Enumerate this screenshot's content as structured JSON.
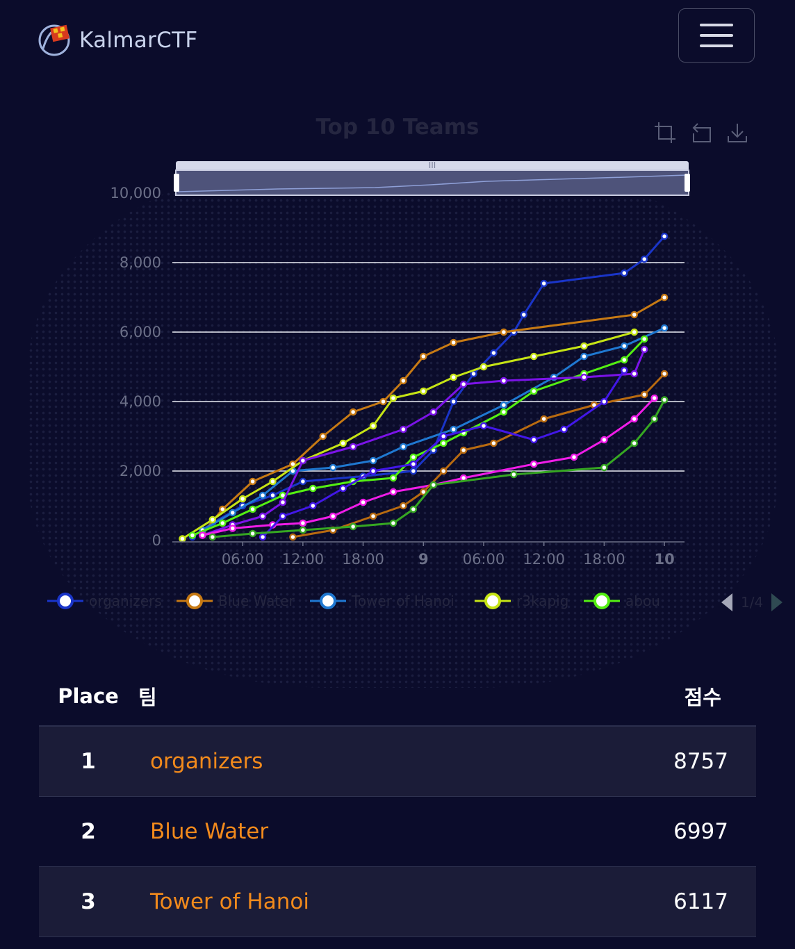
{
  "brand": {
    "name": "KalmarCTF"
  },
  "navbar": {
    "menu_icon": "hamburger-icon"
  },
  "chart": {
    "toolbox_icons": [
      "zoom-select-icon",
      "zoom-reset-icon",
      "download-icon"
    ],
    "legend_pager": "1/4"
  },
  "chart_data": {
    "type": "line",
    "title": "Top 10 Teams",
    "xlabel": "",
    "ylabel": "",
    "ylim": [
      0,
      10000
    ],
    "y_ticks": [
      "0",
      "2,000",
      "4,000",
      "6,000",
      "8,000",
      "10,000"
    ],
    "x_ticks": [
      {
        "label": "06:00",
        "x": 6
      },
      {
        "label": "12:00",
        "x": 12
      },
      {
        "label": "18:00",
        "x": 18
      },
      {
        "label": "9",
        "x": 24
      },
      {
        "label": "06:00",
        "x": 30
      },
      {
        "label": "12:00",
        "x": 36
      },
      {
        "label": "18:00",
        "x": 42
      },
      {
        "label": "10",
        "x": 48
      }
    ],
    "xlim": [
      -1,
      50
    ],
    "grid": true,
    "legend_position": "bottom",
    "series": [
      {
        "name": "organizers",
        "color": "#1a35c9",
        "points": [
          [
            1,
            100
          ],
          [
            3,
            500
          ],
          [
            6,
            1000
          ],
          [
            9,
            1300
          ],
          [
            12,
            1700
          ],
          [
            18,
            1850
          ],
          [
            23,
            2000
          ],
          [
            25,
            2600
          ],
          [
            27,
            4000
          ],
          [
            29,
            4800
          ],
          [
            31,
            5400
          ],
          [
            33,
            6000
          ],
          [
            34,
            6500
          ],
          [
            36,
            7400
          ],
          [
            44,
            7700
          ],
          [
            46,
            8100
          ],
          [
            48,
            8757
          ]
        ]
      },
      {
        "name": "Blue Water",
        "color": "#c77a14",
        "points": [
          [
            2,
            200
          ],
          [
            4,
            900
          ],
          [
            7,
            1700
          ],
          [
            11,
            2200
          ],
          [
            14,
            3000
          ],
          [
            17,
            3700
          ],
          [
            20,
            4000
          ],
          [
            22,
            4600
          ],
          [
            24,
            5300
          ],
          [
            27,
            5700
          ],
          [
            32,
            6000
          ],
          [
            45,
            6500
          ],
          [
            48,
            6997
          ]
        ]
      },
      {
        "name": "Tower of Hanoi",
        "color": "#1f78d1",
        "points": [
          [
            2,
            300
          ],
          [
            5,
            800
          ],
          [
            8,
            1300
          ],
          [
            11,
            2000
          ],
          [
            15,
            2100
          ],
          [
            19,
            2300
          ],
          [
            22,
            2700
          ],
          [
            27,
            3200
          ],
          [
            32,
            3900
          ],
          [
            37,
            4700
          ],
          [
            40,
            5300
          ],
          [
            44,
            5600
          ],
          [
            48,
            6117
          ]
        ]
      },
      {
        "name": "r3kapig",
        "color": "#c6e415",
        "points": [
          [
            0,
            50
          ],
          [
            3,
            600
          ],
          [
            6,
            1200
          ],
          [
            9,
            1700
          ],
          [
            12,
            2300
          ],
          [
            16,
            2800
          ],
          [
            19,
            3300
          ],
          [
            21,
            4100
          ],
          [
            24,
            4300
          ],
          [
            27,
            4700
          ],
          [
            30,
            5000
          ],
          [
            35,
            5300
          ],
          [
            40,
            5600
          ],
          [
            45,
            6000
          ]
        ]
      },
      {
        "name": "abou",
        "color": "#54ef12",
        "points": [
          [
            1,
            150
          ],
          [
            4,
            500
          ],
          [
            7,
            900
          ],
          [
            10,
            1300
          ],
          [
            13,
            1500
          ],
          [
            17,
            1700
          ],
          [
            21,
            1800
          ],
          [
            23,
            2400
          ],
          [
            26,
            2800
          ],
          [
            28,
            3100
          ],
          [
            32,
            3700
          ],
          [
            35,
            4300
          ],
          [
            40,
            4800
          ],
          [
            44,
            5200
          ],
          [
            46,
            5800
          ]
        ]
      },
      {
        "name": "",
        "color": "#7b13e8",
        "points": [
          [
            2,
            150
          ],
          [
            5,
            450
          ],
          [
            8,
            700
          ],
          [
            10,
            1100
          ],
          [
            12,
            2300
          ],
          [
            17,
            2700
          ],
          [
            22,
            3200
          ],
          [
            25,
            3700
          ],
          [
            28,
            4500
          ],
          [
            32,
            4600
          ],
          [
            40,
            4700
          ],
          [
            45,
            4800
          ],
          [
            46,
            5500
          ]
        ]
      },
      {
        "name": "",
        "color": "#f01ce8",
        "points": [
          [
            2,
            150
          ],
          [
            5,
            350
          ],
          [
            9,
            450
          ],
          [
            12,
            500
          ],
          [
            15,
            700
          ],
          [
            18,
            1100
          ],
          [
            21,
            1400
          ],
          [
            25,
            1600
          ],
          [
            28,
            1800
          ],
          [
            35,
            2200
          ],
          [
            39,
            2400
          ],
          [
            42,
            2900
          ],
          [
            45,
            3500
          ],
          [
            47,
            4100
          ]
        ]
      },
      {
        "name": "",
        "color": "#b86a10",
        "points": [
          [
            11,
            100
          ],
          [
            15,
            300
          ],
          [
            19,
            700
          ],
          [
            22,
            1000
          ],
          [
            24,
            1400
          ],
          [
            26,
            2000
          ],
          [
            28,
            2600
          ],
          [
            31,
            2800
          ],
          [
            36,
            3500
          ],
          [
            41,
            3900
          ],
          [
            46,
            4200
          ],
          [
            48,
            4800
          ]
        ]
      },
      {
        "name": "",
        "color": "#4217e8",
        "points": [
          [
            8,
            100
          ],
          [
            10,
            700
          ],
          [
            13,
            1000
          ],
          [
            16,
            1500
          ],
          [
            19,
            2000
          ],
          [
            23,
            2200
          ],
          [
            26,
            3000
          ],
          [
            30,
            3300
          ],
          [
            35,
            2900
          ],
          [
            38,
            3200
          ],
          [
            42,
            4000
          ],
          [
            44,
            4900
          ]
        ]
      },
      {
        "name": "",
        "color": "#36a722",
        "points": [
          [
            3,
            100
          ],
          [
            7,
            200
          ],
          [
            12,
            300
          ],
          [
            17,
            400
          ],
          [
            21,
            500
          ],
          [
            23,
            900
          ],
          [
            25,
            1600
          ],
          [
            33,
            1900
          ],
          [
            42,
            2100
          ],
          [
            45,
            2800
          ],
          [
            47,
            3500
          ],
          [
            48,
            4050
          ]
        ]
      }
    ]
  },
  "table": {
    "headers": {
      "place": "Place",
      "team": "팀",
      "score": "점수"
    },
    "rows": [
      {
        "place": "1",
        "team": "organizers",
        "score": "8757"
      },
      {
        "place": "2",
        "team": "Blue Water",
        "score": "6997"
      },
      {
        "place": "3",
        "team": "Tower of Hanoi",
        "score": "6117"
      }
    ]
  }
}
